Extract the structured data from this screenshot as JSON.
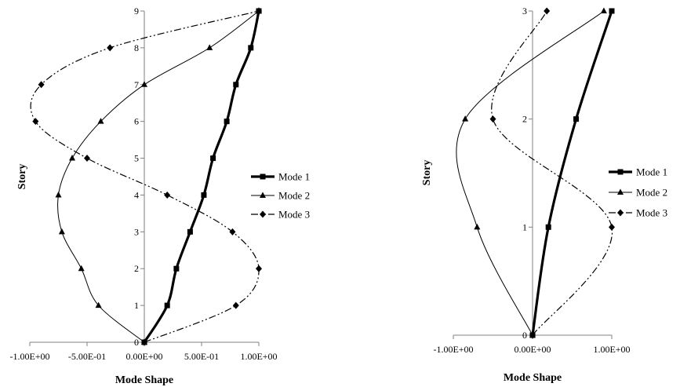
{
  "chart_data": [
    {
      "type": "line",
      "xlabel": "Mode Shape",
      "ylabel": "Story",
      "xlim": [
        -1.0,
        1.0
      ],
      "ylim": [
        0,
        9
      ],
      "xticks": [
        -1.0,
        -0.5,
        0.0,
        0.5,
        1.0
      ],
      "xtick_labels": [
        "-1.00E+00",
        "-5.00E-01",
        "0.00E+00",
        "5.00E-01",
        "1.00E+00"
      ],
      "yticks": [
        0,
        1,
        2,
        3,
        4,
        5,
        6,
        7,
        8,
        9
      ],
      "ytick_labels": [
        "0",
        "1",
        "2",
        "3",
        "4",
        "5",
        "6",
        "7",
        "8",
        "9"
      ],
      "grid": false,
      "legend_position": "right",
      "series": [
        {
          "name": "Mode 1",
          "marker": "square",
          "style": "solid-thick",
          "points": [
            [
              0.0,
              0
            ],
            [
              0.2,
              1
            ],
            [
              0.28,
              2
            ],
            [
              0.4,
              3
            ],
            [
              0.52,
              4
            ],
            [
              0.6,
              5
            ],
            [
              0.72,
              6
            ],
            [
              0.8,
              7
            ],
            [
              0.93,
              8
            ],
            [
              1.0,
              9
            ]
          ]
        },
        {
          "name": "Mode 2",
          "marker": "triangle",
          "style": "solid-thin",
          "points": [
            [
              0.0,
              0
            ],
            [
              -0.4,
              1
            ],
            [
              -0.55,
              2
            ],
            [
              -0.72,
              3
            ],
            [
              -0.75,
              4
            ],
            [
              -0.63,
              5
            ],
            [
              -0.38,
              6
            ],
            [
              0.0,
              7
            ],
            [
              0.57,
              8
            ],
            [
              1.0,
              9
            ]
          ]
        },
        {
          "name": "Mode 3",
          "marker": "diamond",
          "style": "dash-dot",
          "points": [
            [
              0.0,
              0
            ],
            [
              0.8,
              1
            ],
            [
              1.0,
              2
            ],
            [
              0.77,
              3
            ],
            [
              0.2,
              4
            ],
            [
              -0.5,
              5
            ],
            [
              -0.95,
              6
            ],
            [
              -0.9,
              7
            ],
            [
              -0.3,
              8
            ],
            [
              1.0,
              9
            ]
          ]
        }
      ]
    },
    {
      "type": "line",
      "xlabel": "Mode Shape",
      "ylabel": "Story",
      "xlim": [
        -1.0,
        1.0
      ],
      "ylim": [
        0,
        3
      ],
      "xticks": [
        -1.0,
        0.0,
        1.0
      ],
      "xtick_labels": [
        "-1.00E+00",
        "0.00E+00",
        "1.00E+00"
      ],
      "yticks": [
        0,
        1,
        2,
        3
      ],
      "ytick_labels": [
        "0",
        "1",
        "2",
        "3"
      ],
      "grid": false,
      "legend_position": "right",
      "series": [
        {
          "name": "Mode 1",
          "marker": "square",
          "style": "solid-thick",
          "points": [
            [
              0.0,
              0
            ],
            [
              0.2,
              1
            ],
            [
              0.55,
              2
            ],
            [
              1.0,
              3
            ]
          ]
        },
        {
          "name": "Mode 2",
          "marker": "triangle",
          "style": "solid-thin",
          "points": [
            [
              0.0,
              0
            ],
            [
              -0.7,
              1
            ],
            [
              -0.85,
              2
            ],
            [
              0.9,
              3
            ]
          ]
        },
        {
          "name": "Mode 3",
          "marker": "diamond",
          "style": "dash-dot",
          "points": [
            [
              0.0,
              0
            ],
            [
              1.0,
              1
            ],
            [
              -0.5,
              2
            ],
            [
              0.18,
              3
            ]
          ]
        }
      ]
    }
  ]
}
